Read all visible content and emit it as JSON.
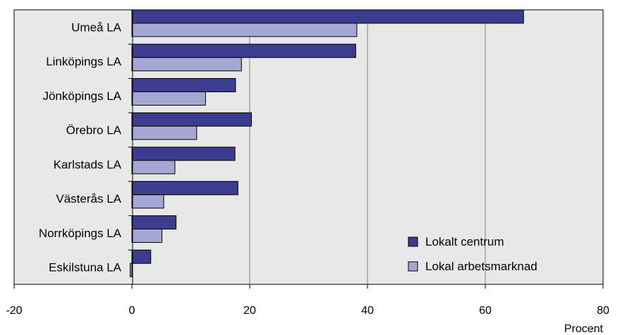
{
  "chart_data": {
    "type": "bar",
    "orientation": "horizontal",
    "categories": [
      "Umeå LA",
      "Linköpings LA",
      "Jönköpings LA",
      "Örebro LA",
      "Karlstads LA",
      "Västerås LA",
      "Norrköpings LA",
      "Eskilstuna LA"
    ],
    "series": [
      {
        "name": "Lokalt centrum",
        "color": "#3d3d8f",
        "values": [
          66.5,
          38.0,
          17.6,
          20.3,
          17.5,
          18.0,
          7.5,
          3.2
        ]
      },
      {
        "name": "Lokal arbetsmarknad",
        "color": "#a6a6d2",
        "values": [
          38.2,
          18.6,
          12.5,
          11.0,
          7.3,
          5.4,
          5.1,
          -0.3
        ]
      }
    ],
    "xlim": [
      -20,
      80
    ],
    "xticks": [
      -20,
      0,
      20,
      40,
      60,
      80
    ],
    "xtick_labels": [
      "-20",
      "0",
      "20",
      "40",
      "60",
      "80"
    ],
    "xlabel": "Procent",
    "grid": "vertical",
    "legend_position": "bottom-right",
    "plot_background": "#e8e8e8"
  }
}
